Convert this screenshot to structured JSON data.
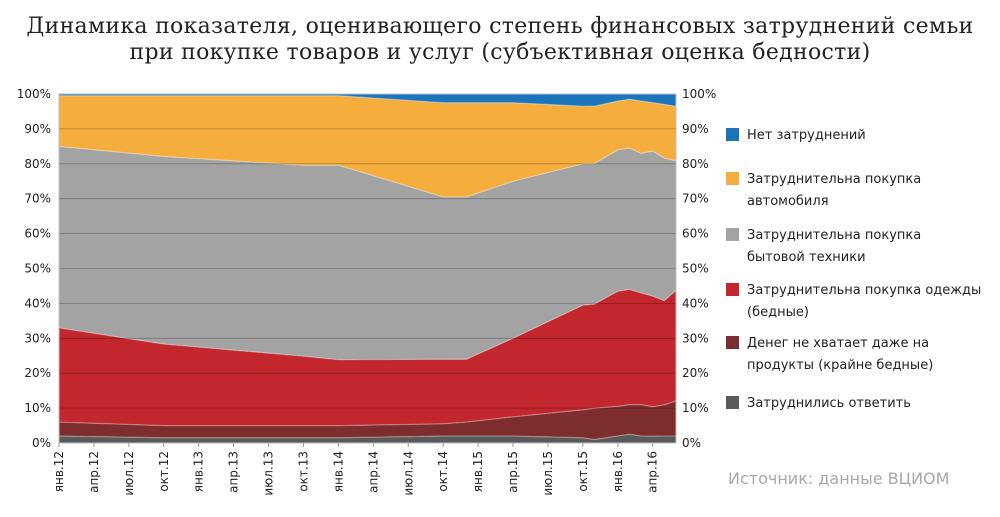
{
  "chart_data": {
    "type": "area",
    "stacked": true,
    "normalized": true,
    "title_lines": [
      "Динамика показателя, оценивающего степень финансовых затруднений семьи",
      "при покупке товаров и услуг (субъективная оценка бедности)"
    ],
    "y_ticks": [
      "0%",
      "10%",
      "20%",
      "30%",
      "40%",
      "50%",
      "60%",
      "70%",
      "80%",
      "90%",
      "100%"
    ],
    "ylim": [
      0,
      100
    ],
    "x_months": [
      "2012-01",
      "2012-02",
      "2012-03",
      "2012-04",
      "2012-05",
      "2012-06",
      "2012-07",
      "2012-08",
      "2012-09",
      "2012-10",
      "2012-11",
      "2012-12",
      "2013-01",
      "2013-02",
      "2013-03",
      "2013-04",
      "2013-05",
      "2013-06",
      "2013-07",
      "2013-08",
      "2013-09",
      "2013-10",
      "2013-11",
      "2013-12",
      "2014-01",
      "2014-02",
      "2014-03",
      "2014-04",
      "2014-05",
      "2014-06",
      "2014-07",
      "2014-08",
      "2014-09",
      "2014-10",
      "2014-11",
      "2014-12",
      "2015-01",
      "2015-02",
      "2015-03",
      "2015-04",
      "2015-05",
      "2015-06",
      "2015-07",
      "2015-08",
      "2015-09",
      "2015-10",
      "2015-11",
      "2015-12",
      "2016-01",
      "2016-02",
      "2016-03",
      "2016-04",
      "2016-05",
      "2016-06"
    ],
    "x_tick_labels": [
      {
        "month": "2012-01",
        "label": "янв.12"
      },
      {
        "month": "2012-04",
        "label": "апр.12"
      },
      {
        "month": "2012-07",
        "label": "июл.12"
      },
      {
        "month": "2012-10",
        "label": "окт.12"
      },
      {
        "month": "2013-01",
        "label": "янв.13"
      },
      {
        "month": "2013-04",
        "label": "апр.13"
      },
      {
        "month": "2013-07",
        "label": "июл.13"
      },
      {
        "month": "2013-10",
        "label": "окт.13"
      },
      {
        "month": "2014-01",
        "label": "янв.14"
      },
      {
        "month": "2014-04",
        "label": "апр.14"
      },
      {
        "month": "2014-07",
        "label": "июл.14"
      },
      {
        "month": "2014-10",
        "label": "окт.14"
      },
      {
        "month": "2015-01",
        "label": "янв.15"
      },
      {
        "month": "2015-04",
        "label": "апр.15"
      },
      {
        "month": "2015-07",
        "label": "июл.15"
      },
      {
        "month": "2015-10",
        "label": "окт.15"
      },
      {
        "month": "2016-01",
        "label": "янв.16"
      },
      {
        "month": "2016-04",
        "label": "апр.16"
      }
    ],
    "series": [
      {
        "name": "Затруднились ответить",
        "color": "#5a5a5a",
        "points": [
          [
            "2012-01",
            2
          ],
          [
            "2012-10",
            1.5
          ],
          [
            "2013-10",
            1.5
          ],
          [
            "2014-01",
            1.5
          ],
          [
            "2014-10",
            2
          ],
          [
            "2014-12",
            2
          ],
          [
            "2015-04",
            2
          ],
          [
            "2015-10",
            1.5
          ],
          [
            "2015-11",
            1
          ],
          [
            "2016-01",
            2
          ],
          [
            "2016-02",
            2.5
          ],
          [
            "2016-03",
            2
          ],
          [
            "2016-06",
            2
          ]
        ]
      },
      {
        "name": "Денег не хватает даже на продукты (крайне бедные)",
        "color": "#7d2d2d",
        "points": [
          [
            "2012-01",
            4
          ],
          [
            "2012-10",
            3.5
          ],
          [
            "2013-10",
            3.5
          ],
          [
            "2014-01",
            3.5
          ],
          [
            "2014-10",
            3.5
          ],
          [
            "2014-12",
            4
          ],
          [
            "2015-04",
            5.5
          ],
          [
            "2015-10",
            8
          ],
          [
            "2015-11",
            9
          ],
          [
            "2016-01",
            8.5
          ],
          [
            "2016-02",
            8.5
          ],
          [
            "2016-03",
            9
          ],
          [
            "2016-04",
            8.5
          ],
          [
            "2016-05",
            9
          ],
          [
            "2016-06",
            10
          ]
        ]
      },
      {
        "name": "Затруднительна покупка одежды (бедные)",
        "color": "#c1272d",
        "points": [
          [
            "2012-01",
            27
          ],
          [
            "2012-10",
            23.5
          ],
          [
            "2013-10",
            20
          ],
          [
            "2014-01",
            19
          ],
          [
            "2014-10",
            18.5
          ],
          [
            "2014-12",
            18
          ],
          [
            "2015-04",
            22.5
          ],
          [
            "2015-10",
            30
          ],
          [
            "2015-11",
            30
          ],
          [
            "2016-01",
            33
          ],
          [
            "2016-02",
            33
          ],
          [
            "2016-03",
            32
          ],
          [
            "2016-04",
            32
          ],
          [
            "2016-05",
            30
          ],
          [
            "2016-06",
            31.5
          ]
        ]
      },
      {
        "name": "Затруднительна покупка бытовой техники",
        "color": "#a3a3a3",
        "points": [
          [
            "2012-01",
            52
          ],
          [
            "2012-10",
            54
          ],
          [
            "2013-10",
            55
          ],
          [
            "2014-01",
            56
          ],
          [
            "2014-10",
            46.5
          ],
          [
            "2014-12",
            46.5
          ],
          [
            "2015-04",
            45
          ],
          [
            "2015-10",
            40.5
          ],
          [
            "2015-11",
            40.5
          ],
          [
            "2016-01",
            40.5
          ],
          [
            "2016-02",
            40.5
          ],
          [
            "2016-03",
            40
          ],
          [
            "2016-04",
            42
          ],
          [
            "2016-05",
            41
          ],
          [
            "2016-06",
            37
          ]
        ]
      },
      {
        "name": "Затруднительна покупка автомобиля",
        "color": "#f5ae3d",
        "points": [
          [
            "2012-01",
            14.5
          ],
          [
            "2012-10",
            17.5
          ],
          [
            "2013-10",
            20
          ],
          [
            "2014-01",
            20
          ],
          [
            "2014-10",
            27
          ],
          [
            "2014-12",
            27
          ],
          [
            "2015-04",
            22.5
          ],
          [
            "2015-10",
            16.5
          ],
          [
            "2015-11",
            16.5
          ],
          [
            "2016-01",
            14
          ],
          [
            "2016-02",
            14
          ],
          [
            "2016-03",
            15
          ],
          [
            "2016-04",
            14
          ],
          [
            "2016-05",
            15.5
          ],
          [
            "2016-06",
            15.5
          ]
        ]
      },
      {
        "name": "Нет затруднений",
        "color": "#1b75bb",
        "points": [
          [
            "2012-01",
            0.5
          ],
          [
            "2012-10",
            0.5
          ],
          [
            "2013-10",
            0.5
          ],
          [
            "2014-01",
            0.5
          ],
          [
            "2014-10",
            2.5
          ],
          [
            "2014-12",
            2.5
          ],
          [
            "2015-04",
            2.5
          ],
          [
            "2015-10",
            3.5
          ],
          [
            "2015-11",
            3.5
          ],
          [
            "2016-01",
            2
          ],
          [
            "2016-02",
            1.5
          ],
          [
            "2016-03",
            2
          ],
          [
            "2016-04",
            2.5
          ],
          [
            "2016-05",
            3
          ],
          [
            "2016-06",
            3.5
          ]
        ]
      }
    ],
    "legend": [
      {
        "label_lines": [
          "Нет затруднений"
        ],
        "color": "#1b75bb"
      },
      {
        "label_lines": [
          "Затруднительна покупка",
          "автомобиля"
        ],
        "color": "#f5ae3d"
      },
      {
        "label_lines": [
          "Затруднительна покупка",
          "бытовой техники"
        ],
        "color": "#a3a3a3"
      },
      {
        "label_lines": [
          "Затруднительна покупка одежды",
          "(бедные)"
        ],
        "color": "#c1272d"
      },
      {
        "label_lines": [
          "Денег не хватает даже на",
          "продукты (крайне бедные)"
        ],
        "color": "#7d2d2d"
      },
      {
        "label_lines": [
          "Затруднились ответить"
        ],
        "color": "#5a5a5a"
      }
    ],
    "legend_position": "right",
    "grid": true
  },
  "source": "Источник: данные ВЦИОМ"
}
